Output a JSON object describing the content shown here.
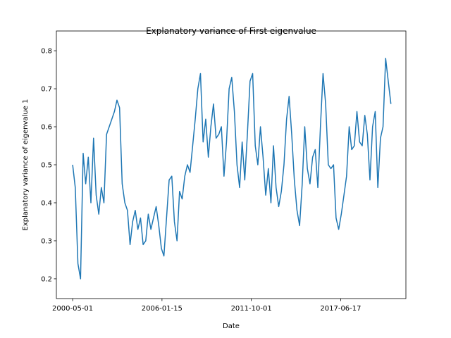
{
  "chart_data": {
    "type": "line",
    "title": "Explanatory variance of First eigenvalue",
    "xlabel": "Date",
    "ylabel": "Explanatory variance of eigenvalue 1",
    "color": "#1f77b4",
    "x": [
      "2000-05-01",
      "2000-07-01",
      "2000-09-01",
      "2000-11-01",
      "2001-01-01",
      "2001-03-01",
      "2001-05-01",
      "2001-07-01",
      "2001-09-01",
      "2001-11-01",
      "2002-01-01",
      "2002-03-01",
      "2002-05-01",
      "2002-07-01",
      "2002-09-01",
      "2002-11-01",
      "2003-01-01",
      "2003-03-01",
      "2003-05-01",
      "2003-07-01",
      "2003-09-01",
      "2003-11-01",
      "2004-01-01",
      "2004-03-01",
      "2004-05-01",
      "2004-07-01",
      "2004-09-01",
      "2004-11-01",
      "2005-01-01",
      "2005-03-01",
      "2005-05-01",
      "2005-07-01",
      "2005-09-01",
      "2005-11-01",
      "2006-01-01",
      "2006-03-01",
      "2006-05-01",
      "2006-07-01",
      "2006-09-01",
      "2006-11-01",
      "2007-01-01",
      "2007-03-01",
      "2007-05-01",
      "2007-07-01",
      "2007-09-01",
      "2007-11-01",
      "2008-01-01",
      "2008-03-01",
      "2008-05-01",
      "2008-07-01",
      "2008-09-01",
      "2008-11-01",
      "2009-01-01",
      "2009-03-01",
      "2009-05-01",
      "2009-07-01",
      "2009-09-01",
      "2009-11-01",
      "2010-01-01",
      "2010-03-01",
      "2010-05-01",
      "2010-07-01",
      "2010-09-01",
      "2010-11-01",
      "2011-01-01",
      "2011-03-01",
      "2011-05-01",
      "2011-07-01",
      "2011-09-01",
      "2011-11-01",
      "2012-01-01",
      "2012-03-01",
      "2012-05-01",
      "2012-07-01",
      "2012-09-01",
      "2012-11-01",
      "2013-01-01",
      "2013-03-01",
      "2013-05-01",
      "2013-07-01",
      "2013-09-01",
      "2013-11-01",
      "2014-01-01",
      "2014-03-01",
      "2014-05-01",
      "2014-07-01",
      "2014-09-01",
      "2014-11-01",
      "2015-01-01",
      "2015-03-01",
      "2015-05-01",
      "2015-07-01",
      "2015-09-01",
      "2015-11-01",
      "2016-01-01",
      "2016-03-01",
      "2016-05-01",
      "2016-07-01",
      "2016-09-01",
      "2016-11-01",
      "2017-01-01",
      "2017-03-01",
      "2017-05-01",
      "2017-07-01",
      "2017-09-01",
      "2017-11-01",
      "2018-01-01",
      "2018-03-01",
      "2018-05-01",
      "2018-07-01",
      "2018-09-01",
      "2018-11-01",
      "2019-01-01",
      "2019-03-01",
      "2019-05-01",
      "2019-07-01",
      "2019-09-01",
      "2019-11-01",
      "2020-01-01",
      "2020-03-01",
      "2020-05-01",
      "2020-07-01",
      "2020-09-01"
    ],
    "values": [
      0.5,
      0.44,
      0.24,
      0.2,
      0.53,
      0.45,
      0.52,
      0.4,
      0.57,
      0.42,
      0.37,
      0.44,
      0.4,
      0.58,
      0.6,
      0.62,
      0.64,
      0.67,
      0.65,
      0.45,
      0.4,
      0.38,
      0.29,
      0.35,
      0.38,
      0.33,
      0.36,
      0.29,
      0.3,
      0.37,
      0.33,
      0.36,
      0.39,
      0.34,
      0.28,
      0.26,
      0.36,
      0.46,
      0.47,
      0.35,
      0.3,
      0.43,
      0.41,
      0.47,
      0.5,
      0.48,
      0.55,
      0.62,
      0.7,
      0.74,
      0.56,
      0.62,
      0.52,
      0.6,
      0.66,
      0.57,
      0.58,
      0.6,
      0.47,
      0.56,
      0.7,
      0.73,
      0.64,
      0.5,
      0.44,
      0.56,
      0.46,
      0.58,
      0.72,
      0.74,
      0.55,
      0.5,
      0.6,
      0.52,
      0.42,
      0.49,
      0.4,
      0.55,
      0.44,
      0.39,
      0.43,
      0.5,
      0.62,
      0.68,
      0.58,
      0.46,
      0.38,
      0.34,
      0.45,
      0.6,
      0.49,
      0.45,
      0.52,
      0.54,
      0.44,
      0.6,
      0.74,
      0.66,
      0.5,
      0.49,
      0.5,
      0.36,
      0.33,
      0.37,
      0.42,
      0.47,
      0.6,
      0.54,
      0.55,
      0.64,
      0.56,
      0.55,
      0.63,
      0.58,
      0.46,
      0.6,
      0.64,
      0.44,
      0.57,
      0.6,
      0.78,
      0.72,
      0.66
    ],
    "xlim": [
      "1999-04-17",
      "2021-08-17"
    ],
    "xticks": [
      "2000-05-01",
      "2006-01-15",
      "2011-10-01",
      "2017-06-17"
    ],
    "ylim": [
      0.148,
      0.852
    ],
    "yticks": [
      0.2,
      0.3,
      0.4,
      0.5,
      0.6,
      0.7,
      0.8
    ]
  }
}
